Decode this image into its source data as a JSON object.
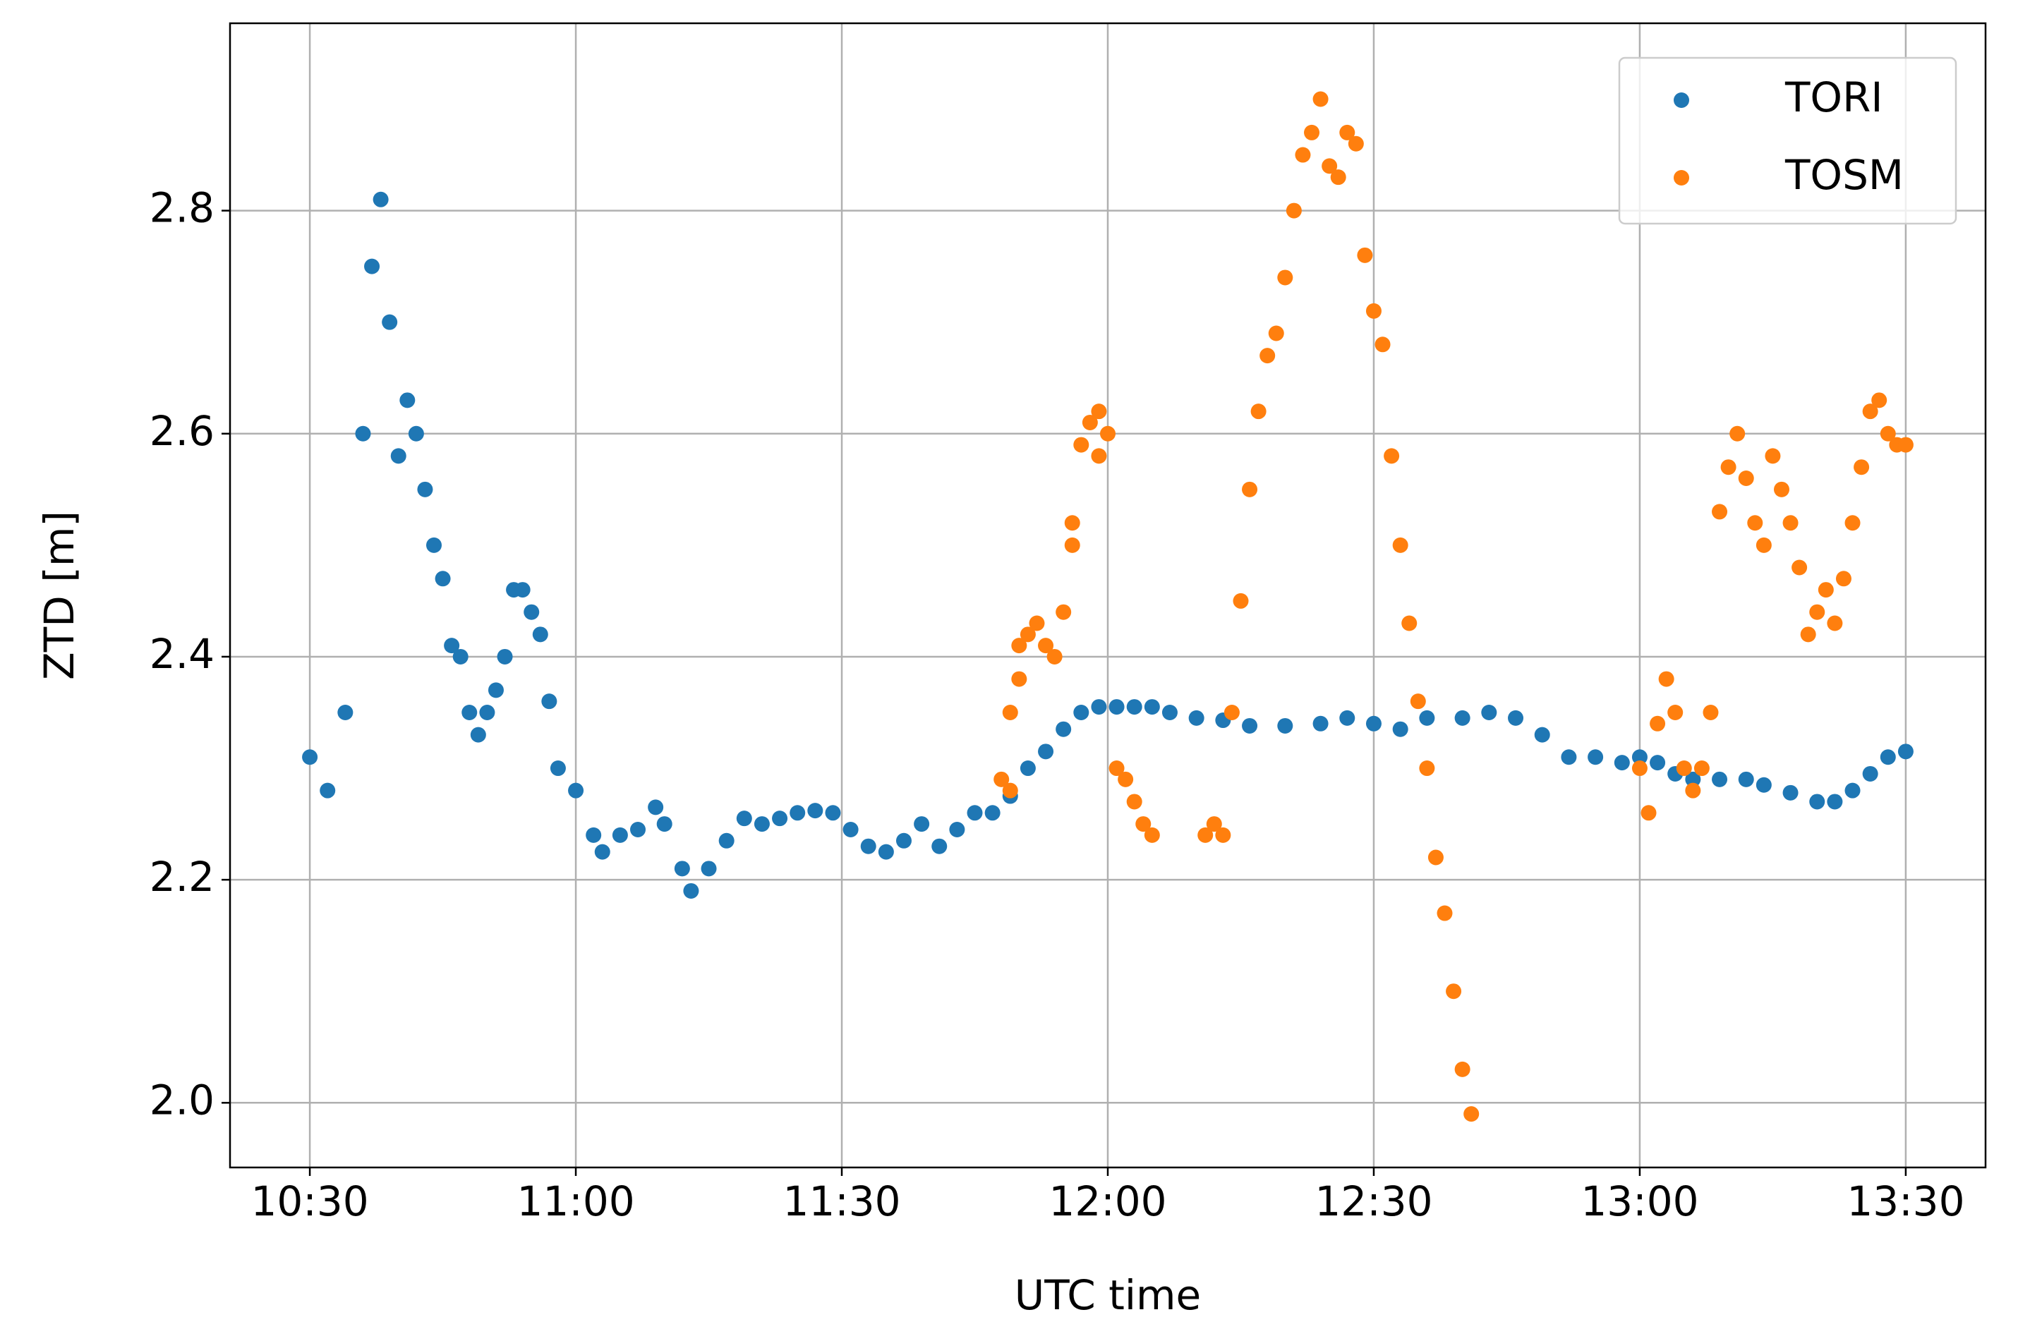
{
  "chart_data": {
    "type": "scatter",
    "xlabel": "UTC time",
    "ylabel": "ZTD [m]",
    "xlim": [
      "10:21",
      "13:39"
    ],
    "xticks": [
      "10:30",
      "11:00",
      "11:30",
      "12:00",
      "12:30",
      "13:00",
      "13:30"
    ],
    "ylim": [
      1.942,
      2.968
    ],
    "yticks": [
      {
        "value": 2.0,
        "label": "2.0"
      },
      {
        "value": 2.2,
        "label": "2.2"
      },
      {
        "value": 2.4,
        "label": "2.4"
      },
      {
        "value": 2.6,
        "label": "2.6"
      },
      {
        "value": 2.8,
        "label": "2.8"
      }
    ],
    "grid": true,
    "legend": "upper right",
    "series": [
      {
        "name": "TORI",
        "color": "#1f77b4",
        "x": [
          "10:30",
          "10:32",
          "10:34",
          "10:36",
          "10:37",
          "10:38",
          "10:39",
          "10:40",
          "10:41",
          "10:42",
          "10:43",
          "10:44",
          "10:45",
          "10:46",
          "10:47",
          "10:48",
          "10:49",
          "10:50",
          "10:51",
          "10:52",
          "10:53",
          "10:54",
          "10:55",
          "10:56",
          "10:57",
          "10:58",
          "11:00",
          "11:02",
          "11:03",
          "11:05",
          "11:07",
          "11:09",
          "11:10",
          "11:12",
          "11:13",
          "11:15",
          "11:17",
          "11:19",
          "11:21",
          "11:23",
          "11:25",
          "11:27",
          "11:29",
          "11:31",
          "11:33",
          "11:35",
          "11:37",
          "11:39",
          "11:41",
          "11:43",
          "11:45",
          "11:47",
          "11:49",
          "11:51",
          "11:53",
          "11:55",
          "11:57",
          "11:59",
          "12:01",
          "12:03",
          "12:05",
          "12:07",
          "12:10",
          "12:13",
          "12:16",
          "12:20",
          "12:24",
          "12:27",
          "12:30",
          "12:33",
          "12:36",
          "12:40",
          "12:43",
          "12:46",
          "12:49",
          "12:52",
          "12:55",
          "12:58",
          "13:00",
          "13:02",
          "13:04",
          "13:06",
          "13:09",
          "13:12",
          "13:14",
          "13:17",
          "13:20",
          "13:22",
          "13:24",
          "13:26",
          "13:28",
          "13:30"
        ],
        "values": [
          2.31,
          2.28,
          2.35,
          2.6,
          2.75,
          2.81,
          2.7,
          2.58,
          2.63,
          2.6,
          2.55,
          2.5,
          2.47,
          2.41,
          2.4,
          2.35,
          2.33,
          2.35,
          2.37,
          2.4,
          2.46,
          2.46,
          2.44,
          2.42,
          2.36,
          2.3,
          2.28,
          2.24,
          2.225,
          2.24,
          2.245,
          2.265,
          2.25,
          2.21,
          2.19,
          2.21,
          2.235,
          2.255,
          2.25,
          2.255,
          2.26,
          2.262,
          2.26,
          2.245,
          2.23,
          2.225,
          2.235,
          2.25,
          2.23,
          2.245,
          2.26,
          2.26,
          2.275,
          2.3,
          2.315,
          2.335,
          2.35,
          2.355,
          2.355,
          2.355,
          2.355,
          2.35,
          2.345,
          2.343,
          2.338,
          2.338,
          2.34,
          2.345,
          2.34,
          2.335,
          2.345,
          2.345,
          2.35,
          2.345,
          2.33,
          2.31,
          2.31,
          2.305,
          2.31,
          2.305,
          2.295,
          2.29,
          2.29,
          2.29,
          2.285,
          2.278,
          2.27,
          2.27,
          2.28,
          2.295,
          2.31,
          2.315
        ]
      },
      {
        "name": "TOSM",
        "color": "#ff7f0e",
        "x": [
          "11:48",
          "11:49",
          "11:49",
          "11:50",
          "11:50",
          "11:51",
          "11:52",
          "11:53",
          "11:54",
          "11:55",
          "11:56",
          "11:56",
          "11:57",
          "11:58",
          "11:59",
          "11:59",
          "12:00",
          "12:01",
          "12:02",
          "12:03",
          "12:04",
          "12:05",
          "12:11",
          "12:12",
          "12:13",
          "12:14",
          "12:15",
          "12:16",
          "12:17",
          "12:18",
          "12:19",
          "12:20",
          "12:21",
          "12:22",
          "12:23",
          "12:24",
          "12:25",
          "12:26",
          "12:27",
          "12:28",
          "12:29",
          "12:30",
          "12:31",
          "12:32",
          "12:33",
          "12:34",
          "12:35",
          "12:36",
          "12:37",
          "12:38",
          "12:39",
          "12:40",
          "12:41",
          "13:00",
          "13:01",
          "13:02",
          "13:03",
          "13:04",
          "13:05",
          "13:06",
          "13:07",
          "13:08",
          "13:09",
          "13:10",
          "13:11",
          "13:12",
          "13:13",
          "13:14",
          "13:15",
          "13:16",
          "13:17",
          "13:18",
          "13:19",
          "13:20",
          "13:21",
          "13:22",
          "13:23",
          "13:24",
          "13:25",
          "13:26",
          "13:27",
          "13:28",
          "13:29",
          "13:30"
        ],
        "values": [
          2.29,
          2.28,
          2.35,
          2.38,
          2.41,
          2.42,
          2.43,
          2.41,
          2.4,
          2.44,
          2.5,
          2.52,
          2.59,
          2.61,
          2.58,
          2.62,
          2.6,
          2.3,
          2.29,
          2.27,
          2.25,
          2.24,
          2.24,
          2.25,
          2.24,
          2.35,
          2.45,
          2.55,
          2.62,
          2.67,
          2.69,
          2.74,
          2.8,
          2.85,
          2.87,
          2.9,
          2.84,
          2.83,
          2.87,
          2.86,
          2.76,
          2.71,
          2.68,
          2.58,
          2.5,
          2.43,
          2.36,
          2.3,
          2.22,
          2.17,
          2.1,
          2.03,
          1.99,
          2.3,
          2.26,
          2.34,
          2.38,
          2.35,
          2.3,
          2.28,
          2.3,
          2.35,
          2.53,
          2.57,
          2.6,
          2.56,
          2.52,
          2.5,
          2.58,
          2.55,
          2.52,
          2.48,
          2.42,
          2.44,
          2.46,
          2.43,
          2.47,
          2.52,
          2.57,
          2.62,
          2.63,
          2.6,
          2.59,
          2.59
        ]
      }
    ]
  }
}
